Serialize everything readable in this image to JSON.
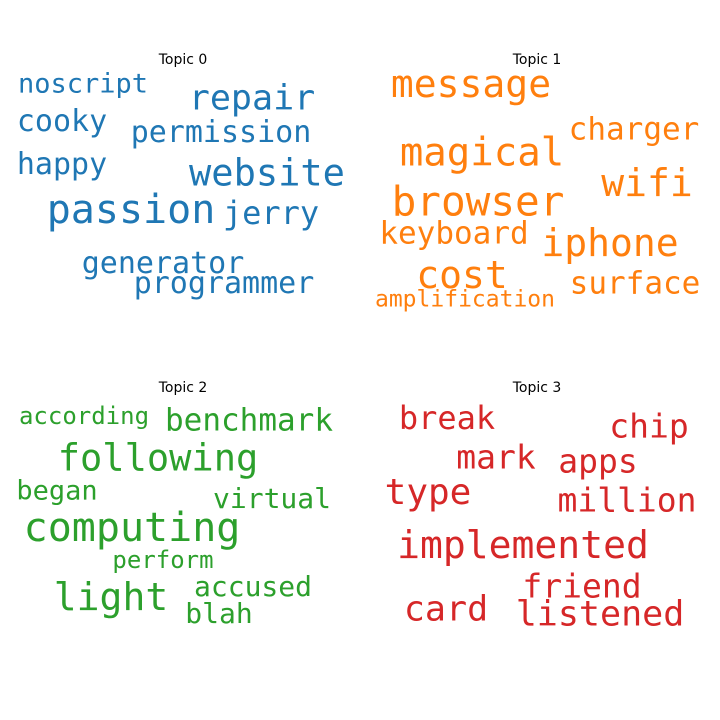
{
  "chart_data": [
    {
      "type": "wordcloud",
      "title": "Topic 0",
      "color": "#1f77b4",
      "words": [
        "noscript",
        "repair",
        "cooky",
        "permission",
        "happy",
        "website",
        "passion",
        "jerry",
        "generator",
        "programmer"
      ]
    },
    {
      "type": "wordcloud",
      "title": "Topic 1",
      "color": "#ff7f0e",
      "words": [
        "message",
        "charger",
        "magical",
        "wifi",
        "browser",
        "keyboard",
        "iphone",
        "cost",
        "surface",
        "amplification"
      ]
    },
    {
      "type": "wordcloud",
      "title": "Topic 2",
      "color": "#2ca02c",
      "words": [
        "according",
        "benchmark",
        "following",
        "began",
        "virtual",
        "computing",
        "perform",
        "light",
        "accused",
        "blah"
      ]
    },
    {
      "type": "wordcloud",
      "title": "Topic 3",
      "color": "#d62728",
      "words": [
        "break",
        "chip",
        "mark",
        "apps",
        "type",
        "million",
        "implemented",
        "friend",
        "card",
        "listened"
      ]
    }
  ]
}
